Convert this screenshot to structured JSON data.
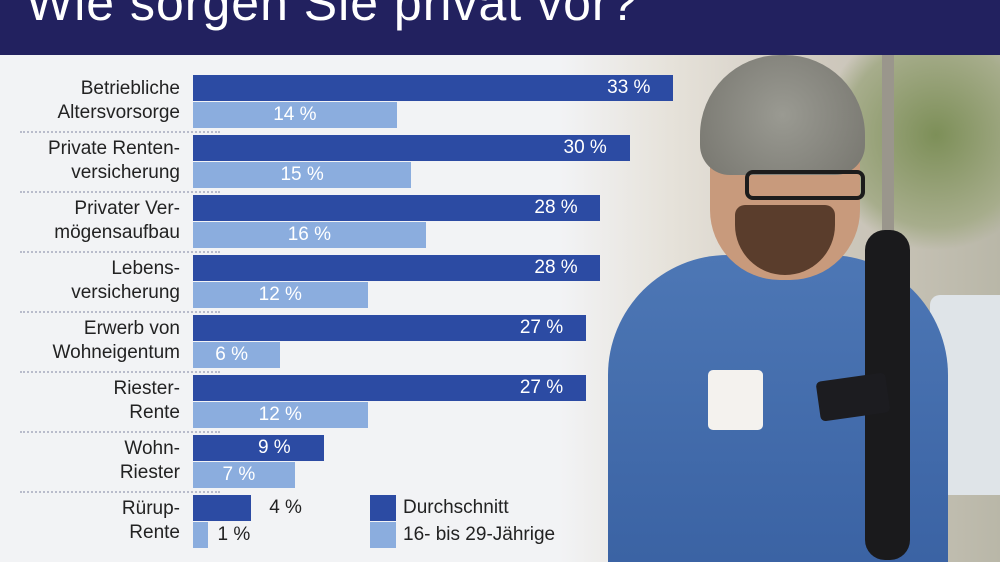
{
  "title": "Wie sorgen Sie privat vor?",
  "chart_data": {
    "type": "bar",
    "orientation": "horizontal",
    "title": "Wie sorgen Sie privat vor?",
    "categories": [
      "Betriebliche Altersvorsorge",
      "Private Renten-versicherung",
      "Privater Ver-mögensaufbau",
      "Lebens-versicherung",
      "Erwerb von Wohneigentum",
      "Riester-Rente",
      "Wohn-Riester",
      "Rürup-Rente"
    ],
    "category_lines": [
      [
        "Betriebliche",
        "Altersvorsorge"
      ],
      [
        "Private Renten-",
        "versicherung"
      ],
      [
        "Privater Ver-",
        "mögensaufbau"
      ],
      [
        "Lebens-",
        "versicherung"
      ],
      [
        "Erwerb von",
        "Wohneigentum"
      ],
      [
        "Riester-",
        "Rente"
      ],
      [
        "Wohn-",
        "Riester"
      ],
      [
        "Rürup-",
        "Rente"
      ]
    ],
    "series": [
      {
        "name": "Durchschnitt",
        "color": "#2c4ba3",
        "values": [
          33,
          30,
          28,
          28,
          27,
          27,
          9,
          4
        ]
      },
      {
        "name": "16- bis 29-Jährige",
        "color": "#8badde",
        "values": [
          14,
          15,
          16,
          12,
          6,
          12,
          7,
          1
        ]
      }
    ],
    "unit": "%",
    "legend_position": "bottom-center"
  }
}
